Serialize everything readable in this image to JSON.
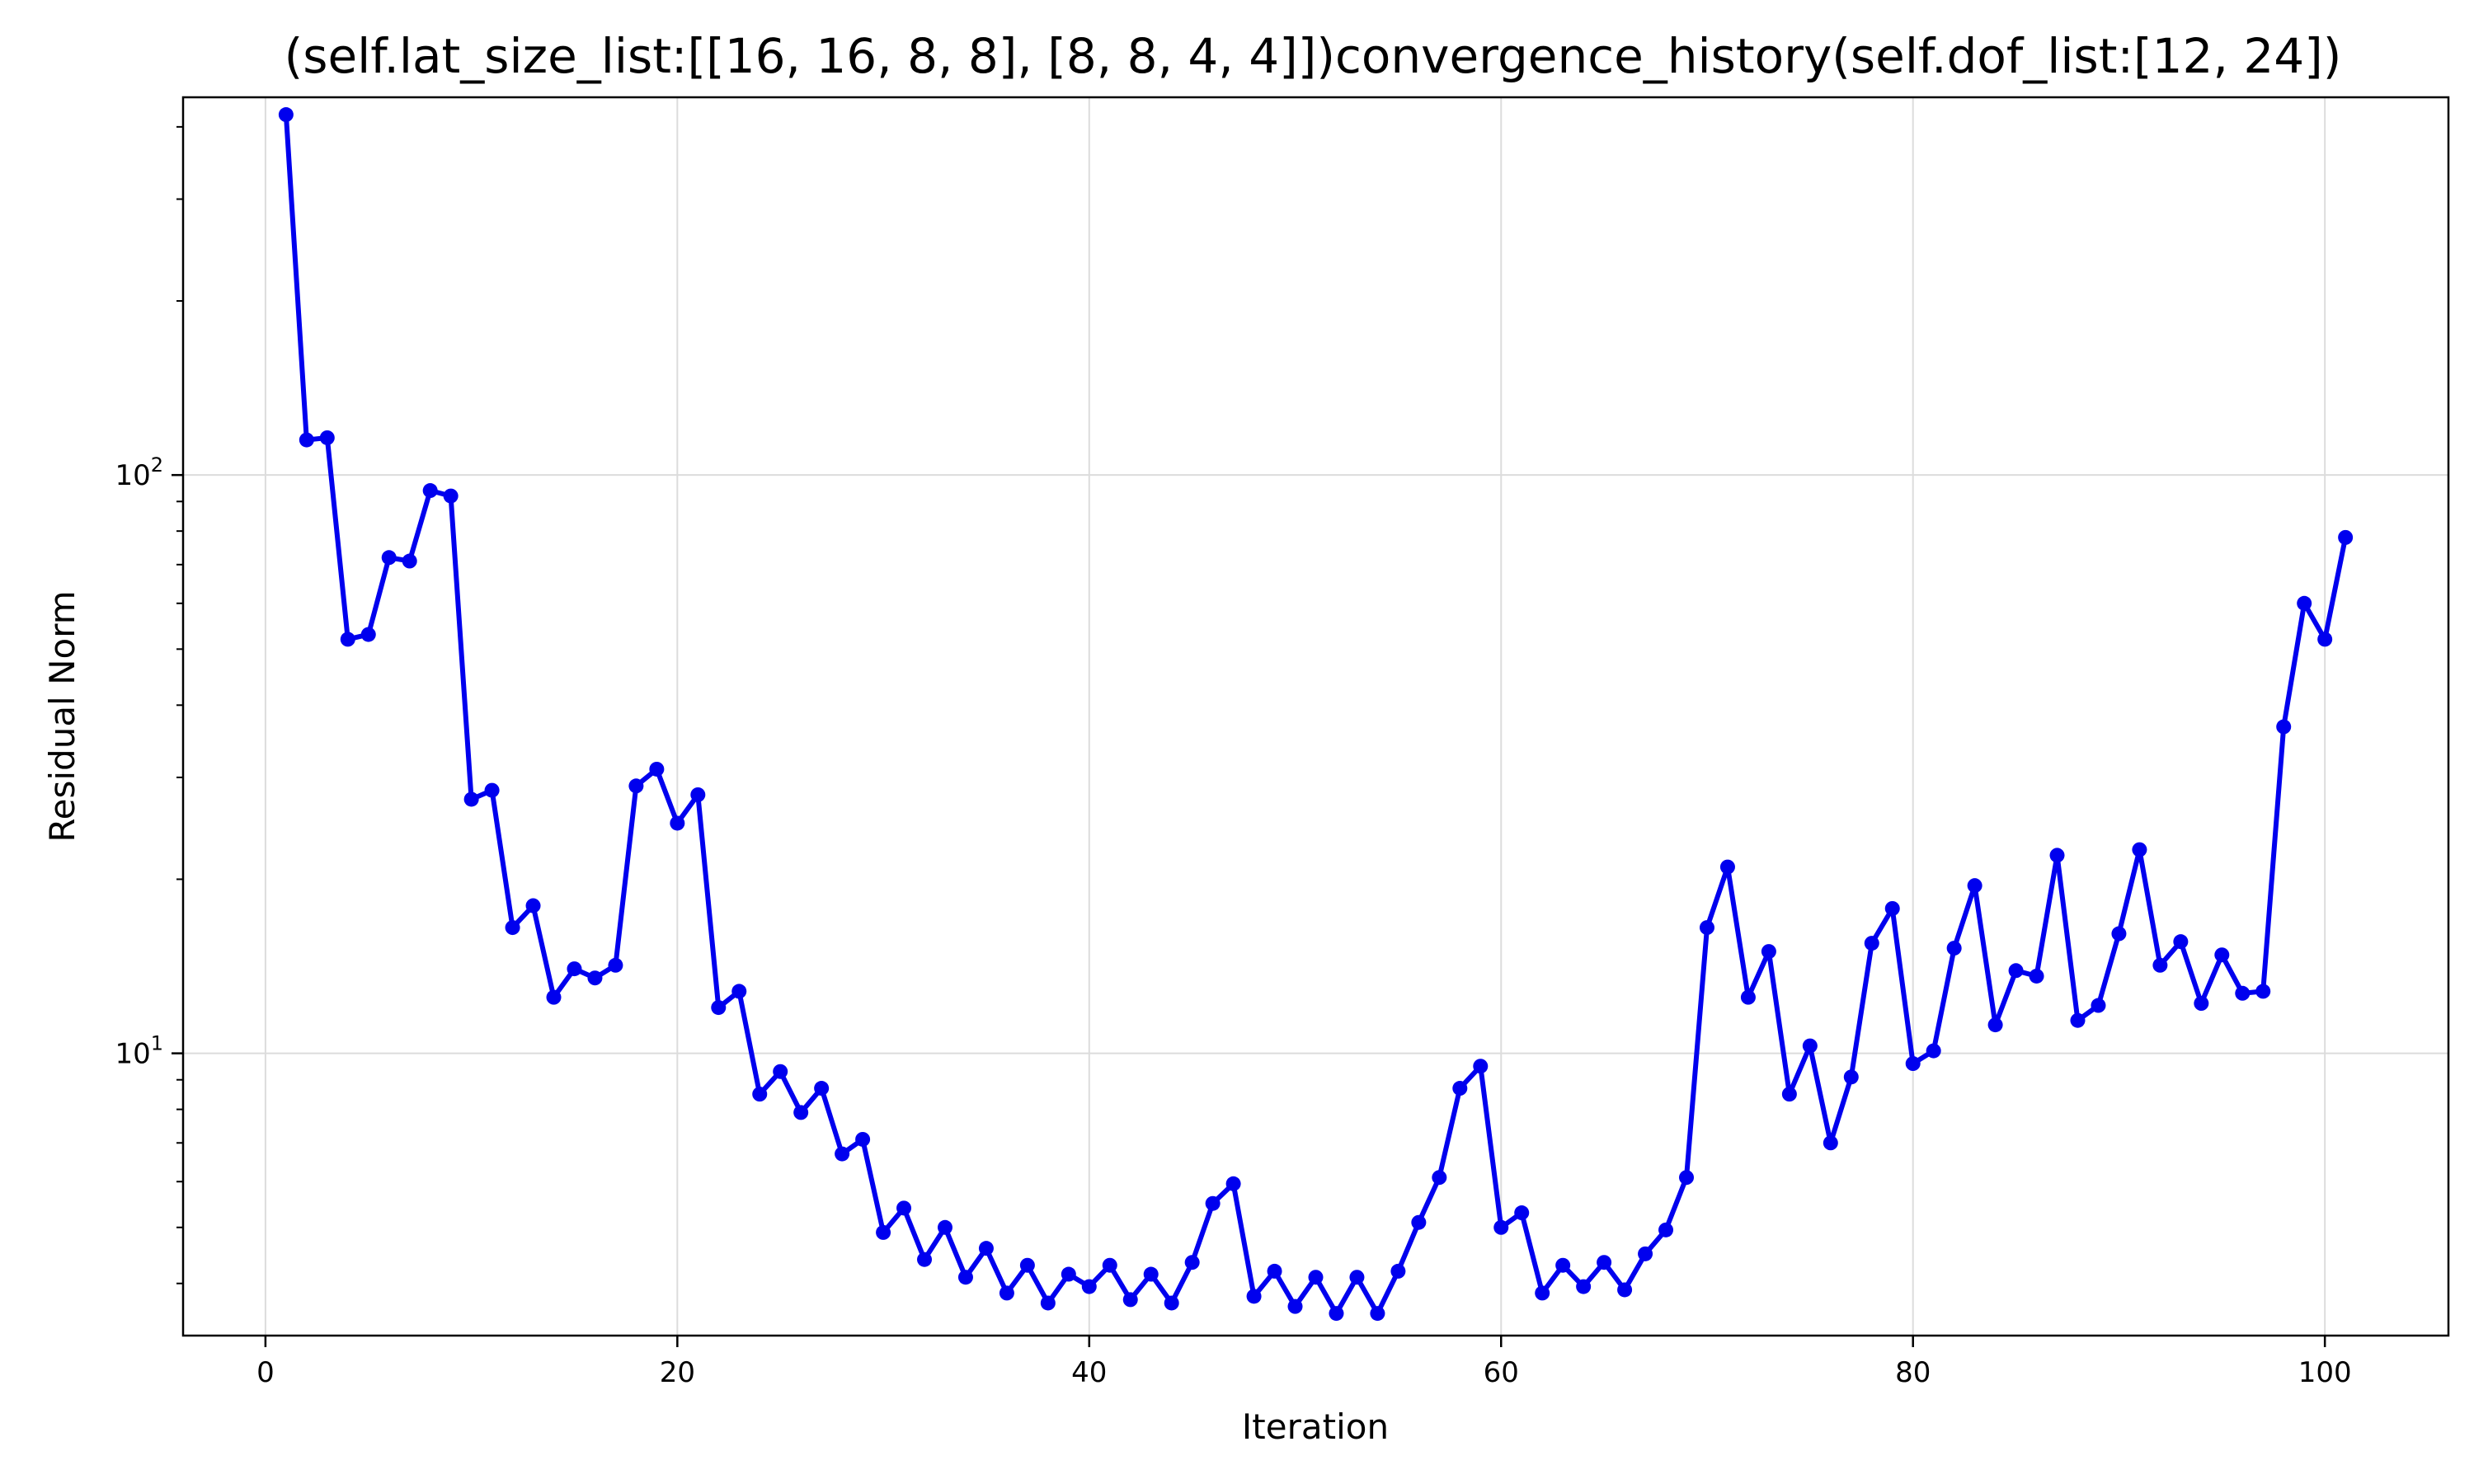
{
  "chart_data": {
    "type": "line",
    "title": "(self.lat_size_list:[[16, 16, 8, 8], [8, 8, 4, 4]])convergence_history(self.dof_list:[12, 24])",
    "xlabel": "Iteration",
    "ylabel": "Residual Norm",
    "yscale": "log",
    "grid": true,
    "xlim": [
      -4,
      106
    ],
    "ylim": [
      3.25,
      450
    ],
    "xticks": [
      0,
      20,
      40,
      60,
      80,
      100
    ],
    "xtick_labels": [
      "0",
      "20",
      "40",
      "60",
      "80",
      "100"
    ],
    "yticks": [
      10,
      100
    ],
    "ytick_labels": [
      {
        "base": "10",
        "exp": "1"
      },
      {
        "base": "10",
        "exp": "2"
      }
    ],
    "line_color": "#0000ee",
    "series": [
      {
        "x": [
          1,
          2,
          3,
          4,
          5,
          6,
          7,
          8,
          9,
          10,
          11,
          12,
          13,
          14,
          15,
          16,
          17,
          18,
          19,
          20,
          21,
          22,
          23,
          24,
          25,
          26,
          27,
          28,
          29,
          30,
          31,
          32,
          33,
          34,
          35,
          36,
          37,
          38,
          39,
          40,
          41,
          42,
          43,
          44,
          45,
          46,
          47,
          48,
          49,
          50,
          51,
          52,
          53,
          54,
          55,
          56,
          57,
          58,
          59,
          60,
          61,
          62,
          63,
          64,
          65,
          66,
          67,
          68,
          69,
          70,
          71,
          72,
          73,
          74,
          75,
          76,
          77,
          78,
          79,
          80,
          81,
          82,
          83,
          84,
          85,
          86,
          87,
          88,
          89,
          90,
          91,
          92,
          93,
          94,
          95,
          96,
          97,
          98,
          99,
          100,
          101
        ],
        "values": [
          420,
          115,
          116,
          52,
          53,
          72,
          71,
          94,
          92,
          27.5,
          28.5,
          16.5,
          18,
          12.5,
          14,
          13.5,
          14.2,
          29,
          31,
          25,
          28,
          12,
          12.8,
          8.5,
          9.3,
          7.9,
          8.7,
          6.7,
          7.1,
          4.9,
          5.4,
          4.4,
          5.0,
          4.1,
          4.6,
          3.85,
          4.3,
          3.7,
          4.15,
          3.95,
          4.3,
          3.75,
          4.15,
          3.7,
          4.35,
          5.5,
          5.95,
          3.8,
          4.2,
          3.65,
          4.1,
          3.55,
          4.1,
          3.55,
          4.2,
          5.1,
          6.1,
          8.7,
          9.5,
          5.0,
          5.3,
          3.85,
          4.3,
          3.95,
          4.35,
          3.9,
          4.5,
          4.95,
          6.1,
          16.5,
          21,
          12.5,
          15,
          8.5,
          10.3,
          7.0,
          9.1,
          15.5,
          17.8,
          9.6,
          10.1,
          15.2,
          19.5,
          11.2,
          13.9,
          13.6,
          22,
          11.4,
          12.1,
          16.1,
          22.5,
          14.2,
          15.6,
          12.2,
          14.8,
          12.7,
          12.8,
          36.7,
          60,
          52,
          78
        ]
      }
    ]
  }
}
